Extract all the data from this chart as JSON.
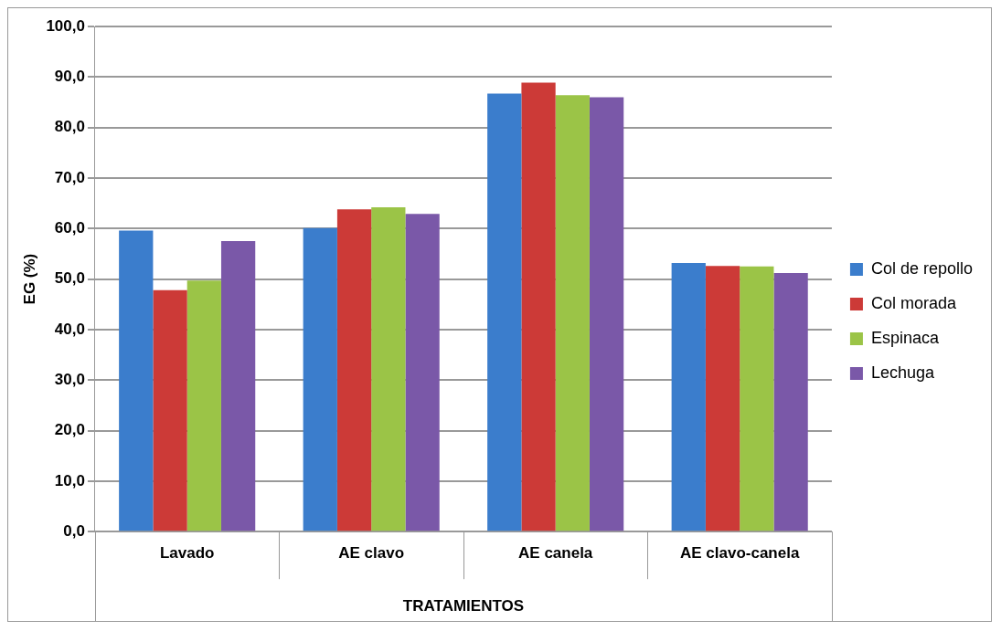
{
  "chart_data": {
    "type": "bar",
    "xlabel": "TRATAMIENTOS",
    "ylabel": "EG (%)",
    "categories": [
      "Lavado",
      "AE clavo",
      "AE canela",
      "AE clavo-canela"
    ],
    "series": [
      {
        "name": "Col de repollo",
        "color": "#3b7dcc",
        "values": [
          59.6,
          60.1,
          86.7,
          53.2
        ]
      },
      {
        "name": "Col morada",
        "color": "#cc3a37",
        "values": [
          47.8,
          63.8,
          88.9,
          52.6
        ]
      },
      {
        "name": "Espinaca",
        "color": "#9bc447",
        "values": [
          49.7,
          64.2,
          86.4,
          52.5
        ]
      },
      {
        "name": "Lechuga",
        "color": "#7a58a8",
        "values": [
          57.5,
          62.9,
          86.0,
          51.2
        ]
      }
    ],
    "ylim": [
      0,
      100
    ],
    "yticks": [
      {
        "value": 0,
        "label": "0,0"
      },
      {
        "value": 10,
        "label": "10,0"
      },
      {
        "value": 20,
        "label": "20,0"
      },
      {
        "value": 30,
        "label": "30,0"
      },
      {
        "value": 40,
        "label": "40,0"
      },
      {
        "value": 50,
        "label": "50,0"
      },
      {
        "value": 60,
        "label": "60,0"
      },
      {
        "value": 70,
        "label": "70,0"
      },
      {
        "value": 80,
        "label": "80,0"
      },
      {
        "value": 90,
        "label": "90,0"
      },
      {
        "value": 100,
        "label": "100,0"
      }
    ],
    "grid": "y",
    "legend": "right"
  }
}
